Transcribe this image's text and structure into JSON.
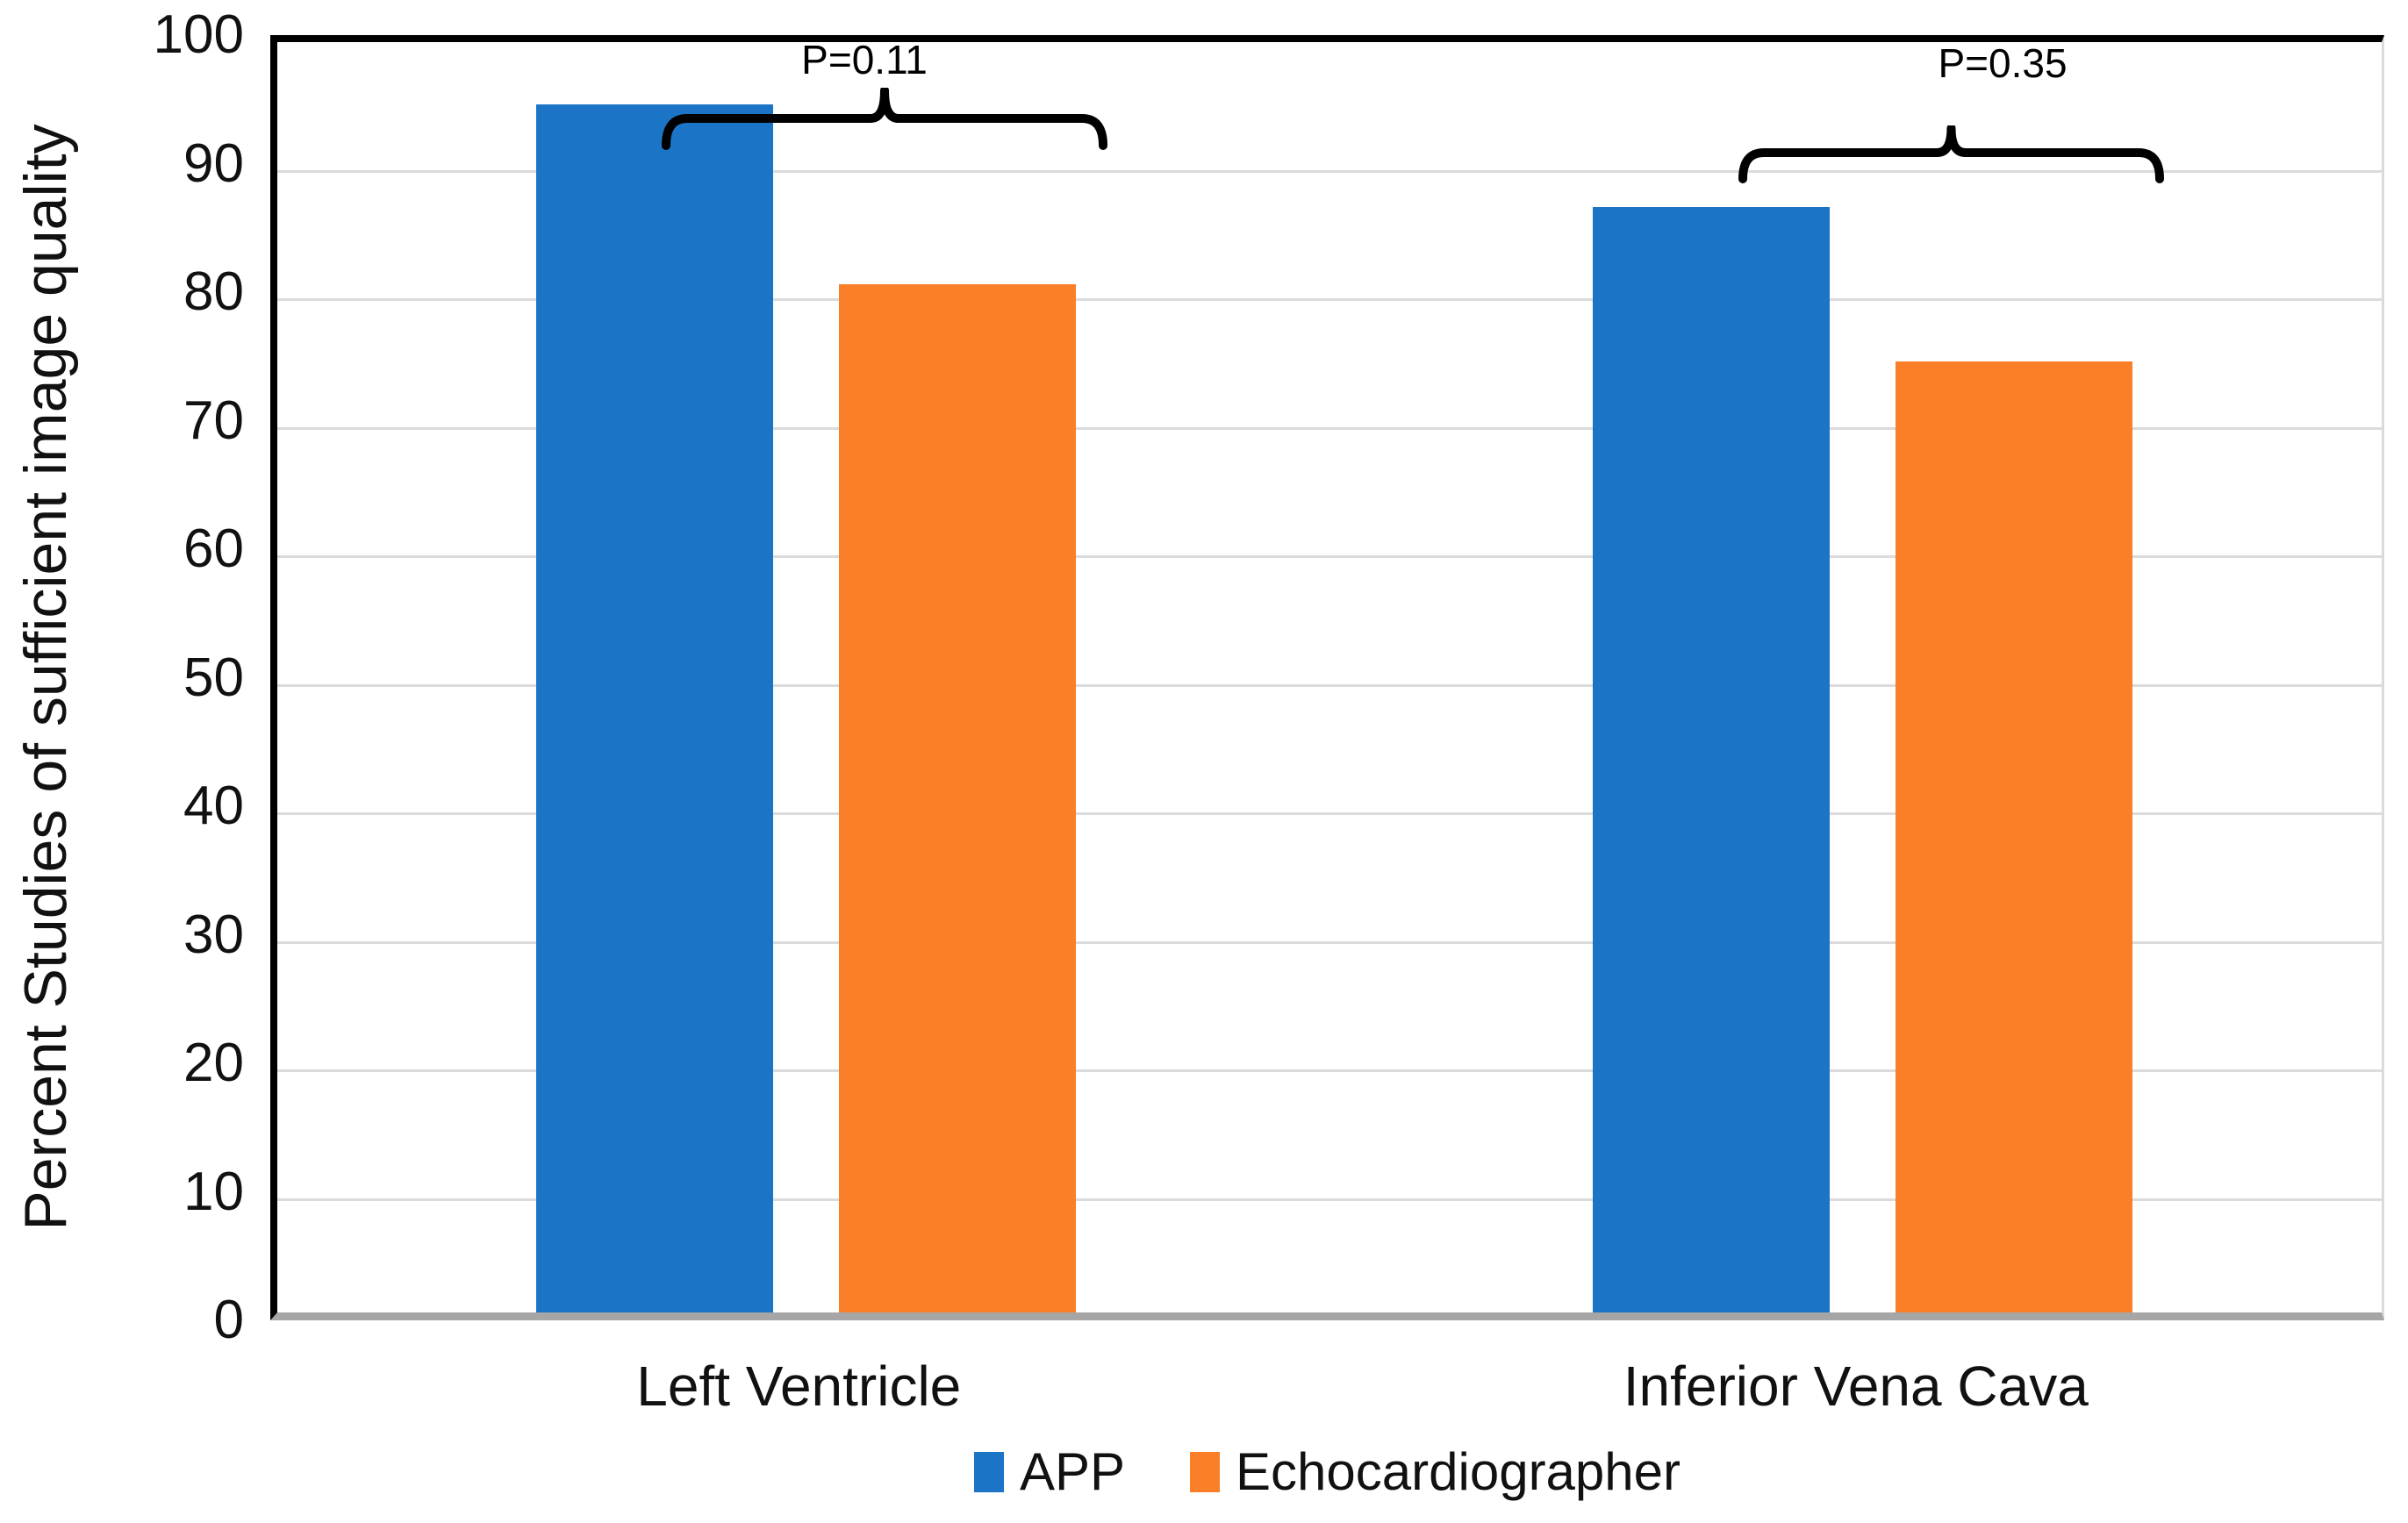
{
  "chart_data": {
    "type": "bar",
    "title": "",
    "ylabel": "Percent Studies of sufficient image quality",
    "xlabel": "",
    "ylim": [
      0,
      100
    ],
    "yticks": [
      0,
      10,
      20,
      30,
      40,
      50,
      60,
      70,
      80,
      90,
      100
    ],
    "grid": true,
    "legend_position": "bottom",
    "categories": [
      "Left Ventricle",
      "Inferior Vena Cava"
    ],
    "series": [
      {
        "name": "APP",
        "color": "#1b74c6",
        "values": [
          94,
          86
        ]
      },
      {
        "name": "Echocardiographer",
        "color": "#fa7f28",
        "values": [
          80,
          74
        ]
      }
    ],
    "annotations": [
      {
        "label": "P=0.11",
        "category": "Left Ventricle"
      },
      {
        "label": "P=0.35",
        "category": "Inferior Vena Cava"
      }
    ]
  },
  "colors": {
    "app_blue": "#1b74c6",
    "echo_orange": "#fa7f28",
    "plot_border_black": "#000000",
    "baseline_gray": "#a6a6a6",
    "gridline_gray": "#dbdbdb",
    "text": "#111111"
  }
}
